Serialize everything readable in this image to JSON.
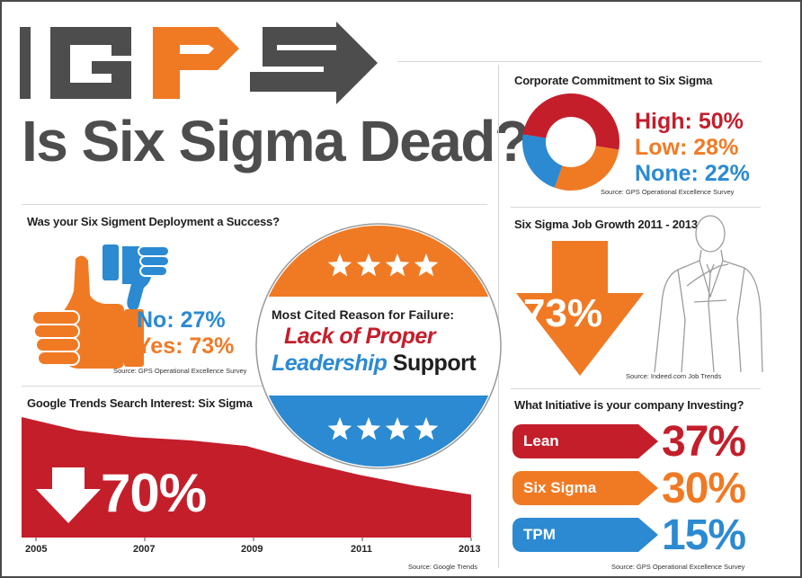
{
  "title": "Is Six Sigma Dead?",
  "logo": {
    "text": "GPS",
    "colors": {
      "gray": "#4d4d4d",
      "orange": "#f07a24"
    }
  },
  "colors": {
    "red": "#c41e2b",
    "orange": "#f07a24",
    "blue": "#2b8ad1",
    "gray": "#4d4d4d"
  },
  "deployment": {
    "heading": "Was your Six Sigment Deployment a Success?",
    "no_label": "No: 27%",
    "yes_label": "Yes: 73%",
    "source": "Source: GPS Operational Excellence Survey",
    "chart_data": {
      "type": "bar",
      "categories": [
        "No",
        "Yes"
      ],
      "values": [
        27,
        73
      ],
      "unit": "%"
    }
  },
  "commitment": {
    "heading": "Corporate Commitment to Six Sigma",
    "high_label": "High: 50%",
    "low_label": "Low: 28%",
    "none_label": "None: 22%",
    "source": "Source: GPS Operational Excellence Survey",
    "chart_data": {
      "type": "pie",
      "categories": [
        "High",
        "Low",
        "None"
      ],
      "values": [
        50,
        28,
        22
      ],
      "colors": [
        "#c41e2b",
        "#f07a24",
        "#2b8ad1"
      ]
    }
  },
  "failure": {
    "heading": "Most Cited Reason for Failure:",
    "line1": "Lack of Proper",
    "line2_blue": "Leadership",
    "line2_dark": "Support"
  },
  "job_growth": {
    "heading": "Six Sigma Job Growth 2011 - 2013",
    "value_label": "73%",
    "source": "Source: Indeed.com Job Trends"
  },
  "trends": {
    "heading": "Google Trends Search Interest: Six Sigma",
    "value_label": "70%",
    "source": "Source: Google Trends",
    "x_labels": [
      "2005",
      "2007",
      "2009",
      "2011",
      "2013"
    ],
    "chart_data": {
      "type": "area",
      "x": [
        "2005",
        "2006",
        "2007",
        "2008",
        "2009",
        "2010",
        "2011",
        "2012",
        "2013"
      ],
      "values": [
        100,
        88,
        82,
        79,
        74,
        60,
        48,
        38,
        30
      ],
      "note": "relative search interest, declining ~70%"
    }
  },
  "initiative": {
    "heading": "What Initiative is your company Investing?",
    "source": "Source: GPS Operational Excellence Survey",
    "items": [
      {
        "label": "Lean",
        "value_label": "37%"
      },
      {
        "label": "Six Sigma",
        "value_label": "30%"
      },
      {
        "label": "TPM",
        "value_label": "15%"
      }
    ],
    "chart_data": {
      "type": "bar",
      "categories": [
        "Lean",
        "Six Sigma",
        "TPM"
      ],
      "values": [
        37,
        30,
        15
      ],
      "unit": "%"
    }
  }
}
